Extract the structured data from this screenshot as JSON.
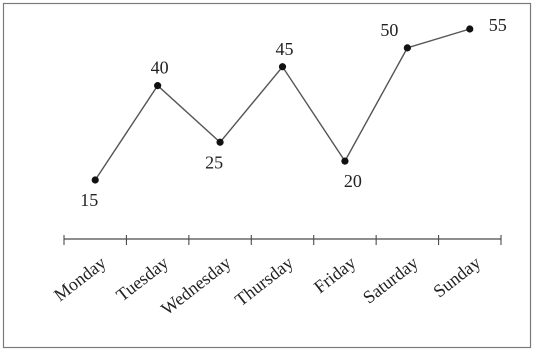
{
  "chart_data": {
    "type": "line",
    "categories": [
      "Monday",
      "Tuesday",
      "Wednesday",
      "Thursday",
      "Friday",
      "Saturday",
      "Sunday"
    ],
    "series": [
      {
        "values": [
          15,
          40,
          25,
          45,
          20,
          50,
          55
        ],
        "data_labels": [
          "15",
          "40",
          "25",
          "45",
          "20",
          "50",
          "55"
        ]
      }
    ],
    "title": "",
    "xlabel": "",
    "ylabel": "",
    "ylim": [
      0,
      60
    ],
    "grid": false,
    "legend": "none",
    "colors": {
      "line": "#555555",
      "marker": "#111111",
      "frame": "#7a7a7a",
      "axis": "#4a4a4a"
    }
  }
}
